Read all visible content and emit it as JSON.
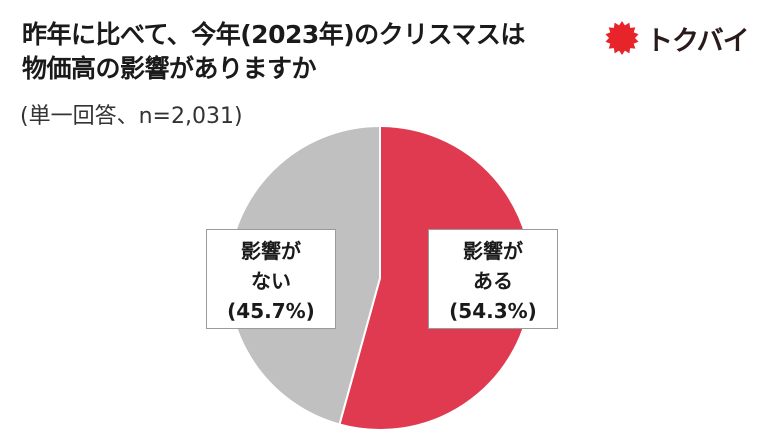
{
  "header": {
    "title_line1": "昨年に比べて、今年(2023年)のクリスマスは",
    "title_line2": "物価高の影響がありますか",
    "subtitle": "(単一回答、n=2,031)"
  },
  "logo": {
    "text": "トクバイ",
    "mark": "red-sunburst-icon",
    "color": "#e8242b"
  },
  "chart_data": {
    "type": "pie",
    "slices": [
      {
        "label_line1": "影響が",
        "label_line2": "ある",
        "value": 54.3,
        "value_text": "(54.3%)",
        "color": "#e03a51"
      },
      {
        "label_line1": "影響が",
        "label_line2": "ない",
        "value": 45.7,
        "value_text": "(45.7%)",
        "color": "#c0c0c0"
      }
    ],
    "start": "12-o-clock",
    "direction": "clockwise"
  }
}
